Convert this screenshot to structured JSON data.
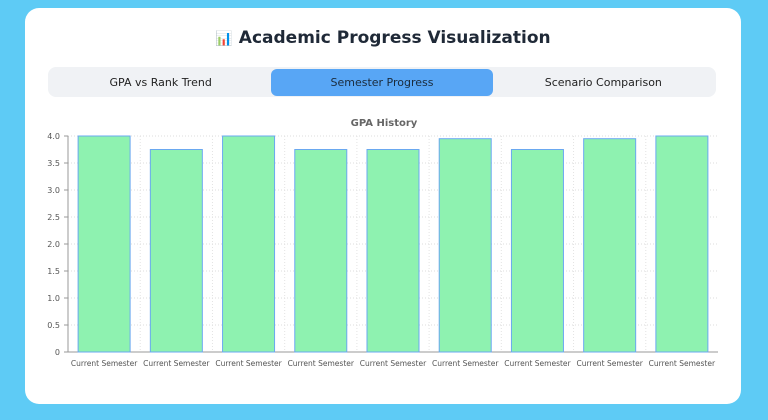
{
  "page": {
    "title": "Academic Progress Visualization",
    "title_icon": "bar-chart-icon"
  },
  "tabs": [
    {
      "label": "GPA vs Rank Trend",
      "active": false
    },
    {
      "label": "Semester Progress",
      "active": true
    },
    {
      "label": "Scenario Comparison",
      "active": false
    }
  ],
  "colors": {
    "background": "#5ecbf5",
    "bar_fill": "#8ef2b0",
    "bar_stroke": "#6aa8f0",
    "active_tab": "#58a6f5"
  },
  "chart_data": {
    "type": "bar",
    "title": "GPA History",
    "xlabel": "",
    "ylabel": "",
    "categories": [
      "Current Semester",
      "Current Semester",
      "Current Semester",
      "Current Semester",
      "Current Semester",
      "Current Semester",
      "Current Semester",
      "Current Semester",
      "Current Semester"
    ],
    "values": [
      4.0,
      3.75,
      4.0,
      3.75,
      3.75,
      3.95,
      3.75,
      3.95,
      4.0
    ],
    "ylim": [
      0,
      4.0
    ],
    "yticks": [
      "0",
      "0.5",
      "1.0",
      "1.5",
      "2.0",
      "2.5",
      "3.0",
      "3.5",
      "4.0"
    ],
    "grid": true,
    "legend": "none"
  }
}
